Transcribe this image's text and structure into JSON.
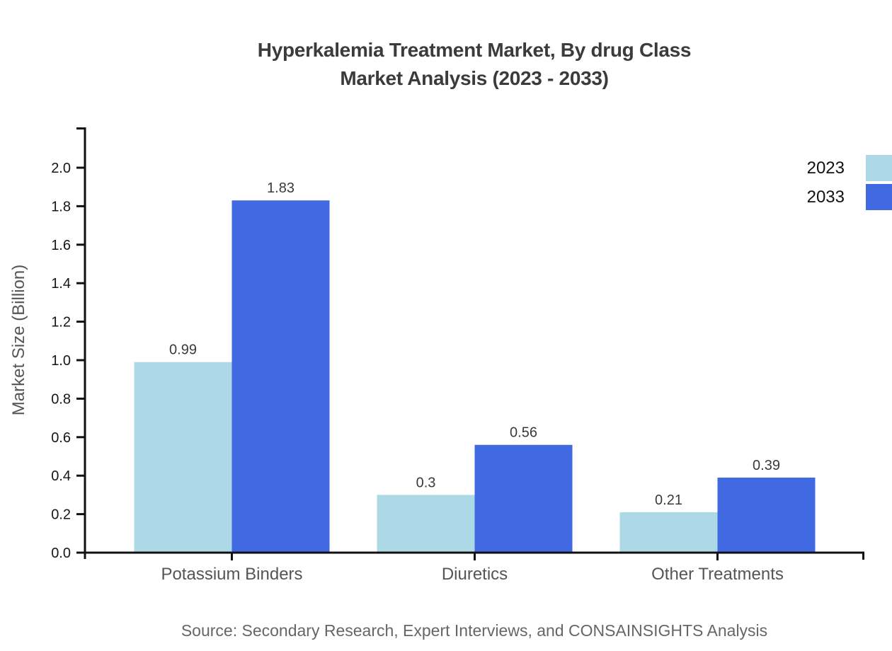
{
  "title": {
    "line1": "Hyperkalemia Treatment Market, By drug Class",
    "line2": "Market Analysis (2023 - 2033)"
  },
  "source": "Source: Secondary Research, Expert Interviews, and CONSAINSIGHTS Analysis",
  "legend": {
    "position": "upper-right",
    "items": [
      {
        "label": "2023",
        "color": "#ADD8E6"
      },
      {
        "label": "2033",
        "color": "#4169E1"
      }
    ]
  },
  "colors": {
    "series_2023": "#ADD8E6",
    "series_2033": "#4169E1",
    "axis": "#111111",
    "tick_label": "#161616",
    "value_label": "#3a3a3a",
    "category_label": "#555555",
    "axis_title": "#555555",
    "title_text": "#3b3b3b",
    "source_text": "#666666"
  },
  "chart_data": {
    "type": "bar",
    "title": "Hyperkalemia Treatment Market, By drug Class Market Analysis (2023 - 2033)",
    "categories": [
      "Potassium Binders",
      "Diuretics",
      "Other Treatments"
    ],
    "series": [
      {
        "name": "2023",
        "color": "#ADD8E6",
        "values": [
          0.99,
          0.3,
          0.21
        ]
      },
      {
        "name": "2033",
        "color": "#4169E1",
        "values": [
          1.83,
          0.56,
          0.39
        ]
      }
    ],
    "value_labels": [
      [
        "0.99",
        "0.3",
        "0.21"
      ],
      [
        "1.83",
        "0.56",
        "0.39"
      ]
    ],
    "xlabel": "",
    "ylabel": "Market Size (Billion)",
    "ylim": [
      0,
      2.2
    ],
    "yticks": [
      "0.0",
      "0.2",
      "0.4",
      "0.6",
      "0.8",
      "1.0",
      "1.2",
      "1.4",
      "1.6",
      "1.8",
      "2.0"
    ],
    "grid": false,
    "legend_position": "upper right"
  }
}
